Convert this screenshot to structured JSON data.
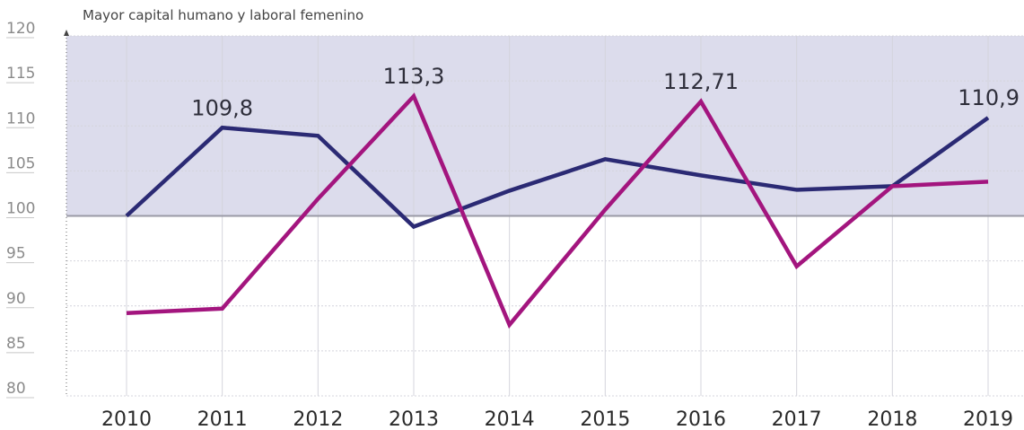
{
  "chart_data": {
    "type": "line",
    "annotation": "Mayor capital humano y laboral femenino",
    "x": [
      "2010",
      "2011",
      "2012",
      "2013",
      "2014",
      "2015",
      "2016",
      "2017",
      "2018",
      "2019"
    ],
    "y_ticks": [
      "120",
      "115",
      "110",
      "105",
      "100",
      "95",
      "90",
      "85",
      "80"
    ],
    "ylim": [
      80,
      120
    ],
    "shaded_region": [
      100,
      120
    ],
    "series": [
      {
        "values": [
          100,
          109.8,
          108.9,
          98.8,
          102.8,
          106.3,
          104.5,
          102.9,
          103.3,
          110.9
        ],
        "color": "#2b2a74"
      },
      {
        "values": [
          89.2,
          89.7,
          101.9,
          113.3,
          87.9,
          100.7,
          112.71,
          94.4,
          103.3,
          103.8
        ],
        "color": "#a3157e"
      }
    ],
    "data_labels": [
      {
        "text": "109,8",
        "x": "2011",
        "y": 109.8
      },
      {
        "text": "113,3",
        "x": "2013",
        "y": 113.3
      },
      {
        "text": "112,71",
        "x": "2016",
        "y": 112.71
      },
      {
        "text": "110,9",
        "x": "2019",
        "y": 110.9
      }
    ],
    "grid": true,
    "colors": {
      "shade": "#dcdcec",
      "zero_line": "#9a9aa6",
      "grid": "#d4d4dc"
    }
  }
}
